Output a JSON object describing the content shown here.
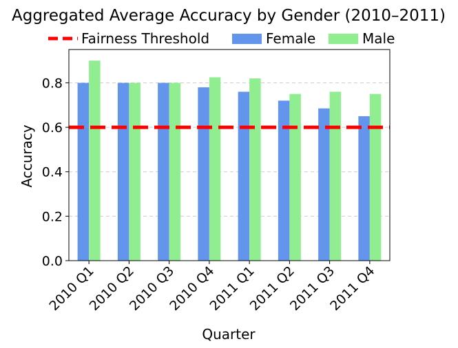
{
  "chart_data": {
    "type": "bar",
    "title": "Aggregated Average Accuracy by Gender (2010–2011)",
    "xlabel": "Quarter",
    "ylabel": "Accuracy",
    "categories": [
      "2010 Q1",
      "2010 Q2",
      "2010 Q3",
      "2010 Q4",
      "2011 Q1",
      "2011 Q2",
      "2011 Q3",
      "2011 Q4"
    ],
    "series": [
      {
        "name": "Female",
        "color": "#6495ED",
        "values": [
          0.8,
          0.8,
          0.8,
          0.78,
          0.76,
          0.72,
          0.685,
          0.65
        ]
      },
      {
        "name": "Male",
        "color": "#90EE90",
        "values": [
          0.9,
          0.8,
          0.8,
          0.825,
          0.82,
          0.75,
          0.76,
          0.75
        ]
      }
    ],
    "threshold": {
      "name": "Fairness Threshold",
      "value": 0.6,
      "color": "#FF0000",
      "style": "dashed"
    },
    "ylim": [
      0,
      0.95
    ],
    "yticks": [
      "0.0",
      "0.2",
      "0.4",
      "0.6",
      "0.8"
    ],
    "grid": "y-dashed",
    "legend_position": "top"
  }
}
